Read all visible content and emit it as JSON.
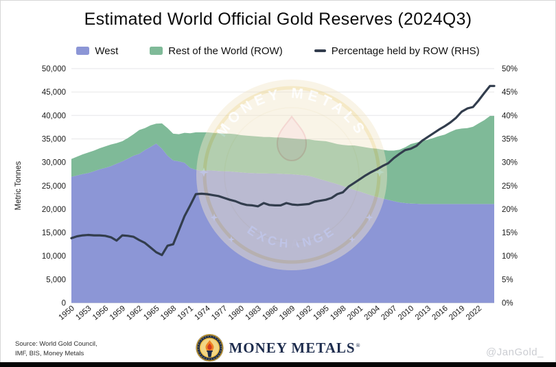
{
  "title": "Estimated World Official Gold Reserves (2024Q3)",
  "legend": [
    {
      "label": "West",
      "color": "#8c96d6",
      "type": "area"
    },
    {
      "label": "Rest of the World (ROW)",
      "color": "#7fba98",
      "type": "area"
    },
    {
      "label": "Percentage held by ROW (RHS)",
      "color": "#323d4d",
      "type": "line"
    }
  ],
  "watermark": {
    "top_text": "MONEY METALS",
    "bottom_text": "EXCHANGE"
  },
  "footer": {
    "source_line1": "Source: World Gold Council,",
    "source_line2": "IMF, BIS, Money Metals",
    "brand": "MONEY METALS",
    "brand_reg": "®",
    "handle": "@JanGold_"
  },
  "chart_data": {
    "type": "area",
    "stacked": true,
    "title": "Estimated World Official Gold Reserves (2024Q3)",
    "grid": true,
    "legend_position": "top",
    "x_domain": [
      1950,
      2024.75
    ],
    "x_tick_years": [
      1950,
      1953,
      1956,
      1959,
      1962,
      1965,
      1968,
      1971,
      1974,
      1977,
      1980,
      1983,
      1986,
      1989,
      1992,
      1995,
      1998,
      2001,
      2004,
      2007,
      2010,
      2013,
      2016,
      2019,
      2022
    ],
    "left_axis": {
      "label": "Metric Tonnes",
      "min": 0,
      "max": 50000,
      "step": 5000,
      "tick_labels": [
        "0",
        "5,000",
        "10,000",
        "15,000",
        "20,000",
        "25,000",
        "30,000",
        "35,000",
        "40,000",
        "45,000",
        "50,000"
      ]
    },
    "right_axis": {
      "label": "",
      "min": 0,
      "max": 50,
      "step": 5,
      "tick_labels": [
        "0%",
        "5%",
        "10%",
        "15%",
        "20%",
        "25%",
        "30%",
        "35%",
        "40%",
        "45%",
        "50%"
      ]
    },
    "years": [
      1950,
      1951,
      1952,
      1953,
      1954,
      1955,
      1956,
      1957,
      1958,
      1959,
      1960,
      1961,
      1962,
      1963,
      1964,
      1965,
      1966,
      1967,
      1968,
      1969,
      1970,
      1971,
      1972,
      1973,
      1974,
      1975,
      1976,
      1977,
      1978,
      1979,
      1980,
      1981,
      1982,
      1983,
      1984,
      1985,
      1986,
      1987,
      1988,
      1989,
      1990,
      1991,
      1992,
      1993,
      1994,
      1995,
      1996,
      1997,
      1998,
      1999,
      2000,
      2001,
      2002,
      2003,
      2004,
      2005,
      2006,
      2007,
      2008,
      2009,
      2010,
      2011,
      2012,
      2013,
      2014,
      2015,
      2016,
      2017,
      2018,
      2019,
      2020,
      2021,
      2022,
      2023,
      2024
    ],
    "series": [
      {
        "name": "West",
        "type": "area",
        "axis": "left",
        "color": "#8c96d6",
        "values": [
          26900,
          27200,
          27500,
          27700,
          28100,
          28500,
          28800,
          29200,
          29700,
          30200,
          30800,
          31400,
          31800,
          32600,
          33300,
          34000,
          32900,
          31400,
          30400,
          30200,
          29900,
          28800,
          28400,
          28200,
          28300,
          28250,
          28150,
          28100,
          28050,
          27950,
          27850,
          27750,
          27700,
          27650,
          27650,
          27600,
          27600,
          27550,
          27500,
          27450,
          27350,
          27250,
          27100,
          26750,
          26400,
          26050,
          25700,
          25350,
          24950,
          24500,
          24100,
          23750,
          23350,
          22950,
          22600,
          22300,
          22000,
          21700,
          21450,
          21300,
          21200,
          21150,
          21100,
          21100,
          21100,
          21100,
          21100,
          21100,
          21100,
          21100,
          21100,
          21100,
          21100,
          21100,
          21100
        ]
      },
      {
        "name": "Rest of the World (ROW)",
        "type": "area",
        "axis": "left",
        "color": "#7fba98",
        "stack": "on-previous",
        "values": [
          3800,
          4000,
          4200,
          4400,
          4400,
          4500,
          4600,
          4600,
          4400,
          4300,
          4400,
          4600,
          5100,
          4700,
          4600,
          4250,
          5400,
          5900,
          5700,
          5800,
          6400,
          7400,
          8000,
          8200,
          8100,
          8050,
          8050,
          8000,
          8050,
          8050,
          7950,
          7950,
          7900,
          7850,
          7750,
          7800,
          7700,
          7750,
          7700,
          7650,
          7650,
          7650,
          7800,
          7950,
          8200,
          8450,
          8500,
          8550,
          8750,
          9100,
          9500,
          9650,
          9850,
          10050,
          10300,
          10400,
          10500,
          10800,
          11250,
          11900,
          12700,
          13050,
          13500,
          13700,
          14100,
          14500,
          14800,
          15400,
          15900,
          16100,
          16200,
          16500,
          17200,
          17900,
          18800
        ]
      },
      {
        "name": "Percentage held by ROW (RHS)",
        "type": "line",
        "axis": "right",
        "color": "#323d4d",
        "values": [
          13.8,
          14.2,
          14.4,
          14.5,
          14.4,
          14.4,
          14.3,
          14.0,
          13.3,
          14.4,
          14.3,
          14.1,
          13.4,
          12.8,
          11.8,
          10.8,
          10.2,
          12.2,
          12.5,
          15.5,
          18.5,
          20.8,
          23.2,
          23.3,
          23.2,
          23.0,
          22.8,
          22.4,
          22.0,
          21.7,
          21.2,
          20.9,
          20.8,
          20.6,
          21.3,
          20.9,
          20.8,
          20.8,
          21.3,
          21.0,
          20.9,
          21.0,
          21.1,
          21.6,
          21.8,
          22.0,
          22.4,
          23.2,
          23.6,
          24.8,
          25.6,
          26.4,
          27.2,
          27.9,
          28.5,
          29.2,
          29.8,
          30.9,
          31.8,
          32.6,
          32.9,
          33.5,
          34.6,
          35.4,
          36.2,
          37.0,
          37.7,
          38.5,
          39.5,
          40.8,
          41.5,
          41.8,
          43.2,
          44.8,
          46.3
        ]
      }
    ]
  }
}
